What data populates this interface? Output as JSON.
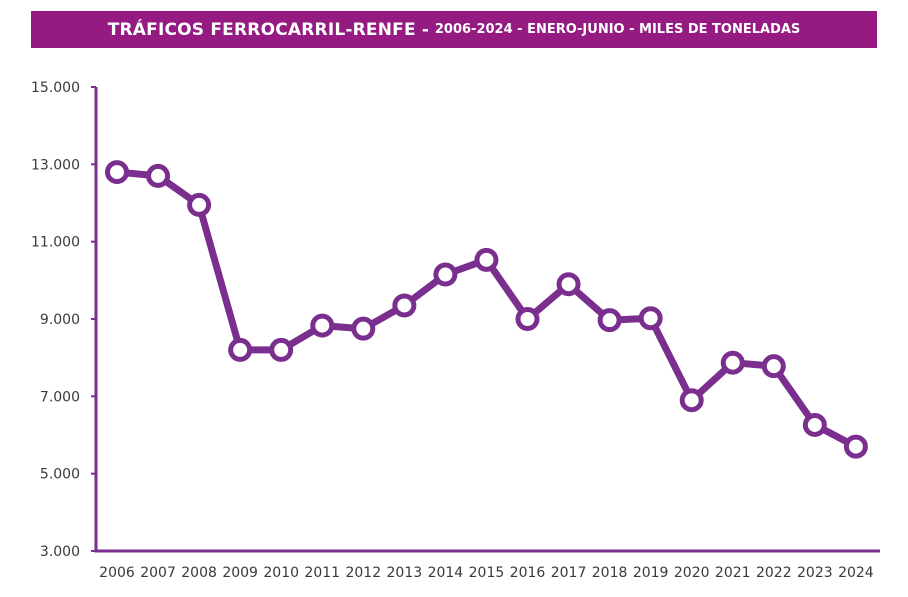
{
  "chart_data": {
    "type": "line",
    "title": "TRÁFICOS FERROCARRIL-RENFE",
    "title_separator": "-",
    "subtitle": "2006-2024 - ENERO-JUNIO - MILES DE TONELADAS",
    "categories": [
      "2006",
      "2007",
      "2008",
      "2009",
      "2010",
      "2011",
      "2012",
      "2013",
      "2014",
      "2015",
      "2016",
      "2017",
      "2018",
      "2019",
      "2020",
      "2021",
      "2022",
      "2023",
      "2024"
    ],
    "series": [
      {
        "values": [
          12800,
          12700,
          11950,
          8200,
          8200,
          8830,
          8750,
          9350,
          10150,
          10530,
          9000,
          9900,
          8970,
          9020,
          6900,
          7870,
          7780,
          6260,
          5700
        ]
      }
    ],
    "ylim": [
      3000,
      15000
    ],
    "yticks": [
      3000,
      5000,
      7000,
      9000,
      11000,
      13000,
      15000
    ],
    "ytick_labels": [
      "3.000",
      "5.000",
      "7.000",
      "9.000",
      "11.000",
      "13.000",
      "15.000"
    ],
    "xlabel": "",
    "ylabel": "",
    "grid": false,
    "colors": {
      "line": "#7a2e8e",
      "title_bg": "#951b82",
      "marker_fill": "#ffffff",
      "axis": "#7a2e8e"
    }
  }
}
